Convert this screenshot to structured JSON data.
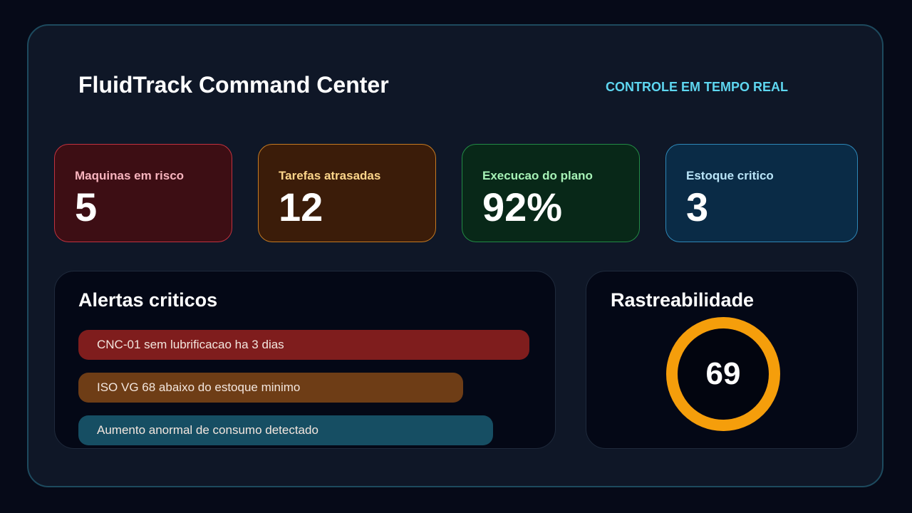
{
  "header": {
    "title": "FluidTrack Command Center",
    "subtitle": "CONTROLE EM TEMPO REAL"
  },
  "kpis": [
    {
      "label": "Maquinas em risco",
      "value": "5",
      "accent": "#f8b4be",
      "bg": "#3d0e14",
      "border": "#c2323f"
    },
    {
      "label": "Tarefas atrasadas",
      "value": "12",
      "accent": "#fcd58a",
      "bg": "#3b1c09",
      "border": "#c57a22"
    },
    {
      "label": "Execucao do plano",
      "value": "92%",
      "accent": "#a6f2b6",
      "bg": "#082818",
      "border": "#238b45"
    },
    {
      "label": "Estoque critico",
      "value": "3",
      "accent": "#b9e4f7",
      "bg": "#0a2b46",
      "border": "#2e88b8"
    }
  ],
  "alerts": {
    "title": "Alertas criticos",
    "items": [
      {
        "text": "CNC-01 sem lubrificacao ha 3 dias",
        "color": "#7f1d1d",
        "width_fraction": 0.945
      },
      {
        "text": "ISO VG 68 abaixo do estoque minimo",
        "color": "#6e3d16",
        "width_fraction": 0.806
      },
      {
        "text": "Aumento anormal de consumo detectado",
        "color": "#164e63",
        "width_fraction": 0.868
      }
    ]
  },
  "traceability": {
    "title": "Rastreabilidade",
    "value": "69",
    "ring_color": "#f59e0b"
  }
}
